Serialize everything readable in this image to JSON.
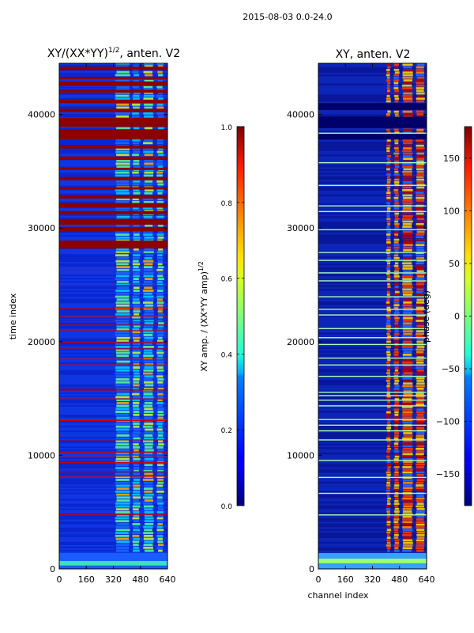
{
  "figure_title": "2015-08-03 0.0-24.0",
  "chart_data": [
    {
      "type": "heatmap",
      "title": "XY/(XX*YY)^1/2, anten. V2",
      "title_main": "XY/(XX*YY)",
      "title_exp": "1/2",
      "title_tail": ", anten. V2",
      "xlabel": "",
      "ylabel": "time index",
      "xlim": [
        0,
        640
      ],
      "ylim": [
        0,
        44500
      ],
      "x_ticks": [
        0,
        160,
        320,
        480,
        640
      ],
      "y_ticks": [
        0,
        10000,
        20000,
        30000,
        40000
      ],
      "colorbar": {
        "label": "XY amp. / (XX*YY amp)^1/2",
        "label_main": "XY amp. / (XX*YY amp)",
        "label_exp": "1/2",
        "min": 0.0,
        "max": 1.0,
        "ticks": [
          "0.0",
          "0.2",
          "0.4",
          "0.6",
          "0.8",
          "1.0"
        ],
        "tick_values": [
          0.0,
          0.2,
          0.4,
          0.6,
          0.8,
          1.0
        ]
      },
      "saturated_bands": [
        [
          28200,
          28900
        ],
        [
          29700,
          30100
        ],
        [
          30300,
          30800
        ],
        [
          31200,
          31500
        ],
        [
          31800,
          32200
        ],
        [
          32600,
          32900
        ],
        [
          33400,
          33600
        ],
        [
          34200,
          34500
        ],
        [
          35100,
          35300
        ],
        [
          36000,
          36300
        ],
        [
          37000,
          37300
        ],
        [
          37800,
          38700
        ],
        [
          38900,
          39700
        ],
        [
          40200,
          40500
        ],
        [
          41000,
          41300
        ],
        [
          41900,
          42200
        ],
        [
          42500,
          42900
        ],
        [
          43100,
          43300
        ],
        [
          43900,
          44200
        ]
      ],
      "thin_lines": [
        4800,
        8200,
        8600,
        9400,
        10000,
        10300,
        11400,
        13100,
        15000,
        15700,
        16000,
        18000,
        18500,
        19400,
        20000,
        21000,
        21500,
        22000,
        22300,
        23000,
        25000,
        26200,
        27800
      ],
      "bright_channels": [
        [
          330,
          420
        ],
        [
          430,
          480
        ],
        [
          495,
          560
        ],
        [
          575,
          620
        ]
      ]
    },
    {
      "type": "heatmap",
      "title": "XY, anten. V2",
      "xlabel": "channel index",
      "ylabel": "",
      "xlim": [
        0,
        640
      ],
      "ylim": [
        0,
        44500
      ],
      "x_ticks": [
        0,
        160,
        320,
        480,
        640
      ],
      "y_ticks": [
        0,
        10000,
        20000,
        30000,
        40000
      ],
      "colorbar": {
        "label": "phase (deg)",
        "min": -180,
        "max": 180,
        "ticks": [
          "−150",
          "−100",
          "−50",
          "0",
          "50",
          "100",
          "150"
        ],
        "tick_values": [
          -150,
          -100,
          -50,
          0,
          50,
          100,
          150
        ]
      },
      "bright_lines": [
        4800,
        6700,
        8100,
        9600,
        11400,
        12200,
        12700,
        13200,
        14400,
        14900,
        15300,
        15600,
        17000,
        18000,
        18600,
        19800,
        20400,
        21200,
        22400,
        22900,
        24000,
        25400,
        26100,
        27200,
        27900,
        29900,
        31500,
        32000,
        33800,
        35800,
        38400
      ],
      "dark_bands": [
        [
          37800,
          38300
        ],
        [
          38800,
          39800
        ],
        [
          40400,
          41000
        ]
      ],
      "bright_channels": [
        [
          400,
          430
        ],
        [
          445,
          480
        ],
        [
          495,
          560
        ],
        [
          575,
          630
        ]
      ]
    }
  ]
}
